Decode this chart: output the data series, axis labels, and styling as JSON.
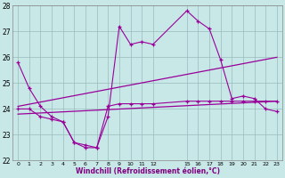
{
  "bg_color": "#c8e8e8",
  "line_color": "#990099",
  "grid_color": "#99bbbb",
  "xlim": [
    -0.5,
    23.5
  ],
  "ylim": [
    22,
    28
  ],
  "xtick_positions": [
    0,
    1,
    2,
    3,
    4,
    5,
    6,
    7,
    8,
    9,
    10,
    11,
    12,
    15,
    16,
    17,
    18,
    19,
    20,
    21,
    22,
    23
  ],
  "xtick_labels": [
    "0",
    "1",
    "2",
    "3",
    "4",
    "5",
    "6",
    "7",
    "8",
    "9",
    "10",
    "11",
    "12",
    "15",
    "16",
    "17",
    "18",
    "19",
    "20",
    "21",
    "22",
    "23"
  ],
  "yticks": [
    22,
    23,
    24,
    25,
    26,
    27,
    28
  ],
  "xlabel": "Windchill (Refroidissement éolien,°C)",
  "line1_x": [
    0,
    1,
    2,
    3,
    4,
    5,
    6,
    7,
    8,
    9,
    10,
    11,
    12,
    15,
    16,
    17,
    18,
    19,
    20,
    21,
    22,
    23
  ],
  "line1_y": [
    25.8,
    24.8,
    24.1,
    23.7,
    23.5,
    22.7,
    22.5,
    22.5,
    23.7,
    27.2,
    26.5,
    26.6,
    26.5,
    27.8,
    27.4,
    27.1,
    25.9,
    24.4,
    24.5,
    24.4,
    24.0,
    23.9
  ],
  "line2_x": [
    0,
    1,
    2,
    3,
    4,
    5,
    6,
    7,
    8,
    9,
    10,
    11,
    12,
    15,
    16,
    17,
    18,
    19,
    20,
    21,
    22,
    23
  ],
  "line2_y": [
    24.0,
    24.0,
    23.7,
    23.6,
    23.5,
    22.7,
    22.6,
    22.5,
    24.1,
    24.2,
    24.2,
    24.2,
    24.2,
    24.3,
    24.3,
    24.3,
    24.3,
    24.3,
    24.3,
    24.3,
    24.3,
    24.3
  ],
  "line3_x": [
    0,
    23
  ],
  "line3_y": [
    24.1,
    26.0
  ],
  "line4_x": [
    0,
    23
  ],
  "line4_y": [
    23.8,
    24.3
  ]
}
